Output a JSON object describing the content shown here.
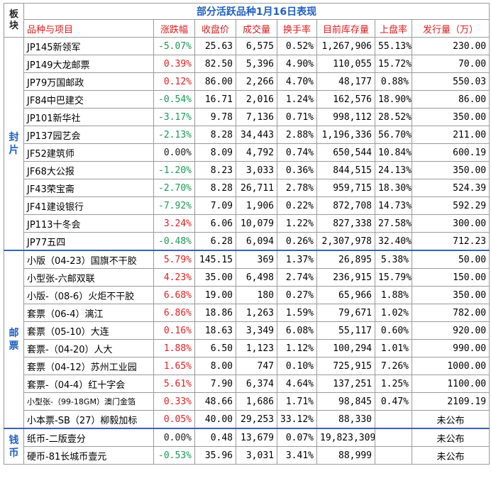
{
  "title": "部分活跃品种1月16日表现",
  "corner_label": "板块",
  "headers": [
    "品种与项目",
    "涨跌幅",
    "收盘价",
    "成交量",
    "换手率",
    "目前库存量",
    "上盘率",
    "发行量（万）"
  ],
  "sections": [
    {
      "label": "封片",
      "rows": [
        {
          "name": "JP145新领军",
          "change": "-5.07%",
          "dir": "neg",
          "close": "25.63",
          "volume": "6,575",
          "turnover": "0.52%",
          "stock": "1,267,906",
          "rate": "55.13%",
          "issue": "230.00"
        },
        {
          "name": "JP149大龙邮票",
          "change": "0.39%",
          "dir": "pos",
          "close": "82.50",
          "volume": "5,396",
          "turnover": "4.90%",
          "stock": "110,055",
          "rate": "15.72%",
          "issue": "70.00"
        },
        {
          "name": "JP79万国邮政",
          "change": "0.12%",
          "dir": "pos",
          "close": "86.00",
          "volume": "2,266",
          "turnover": "4.70%",
          "stock": "48,177",
          "rate": "0.88%",
          "issue": "550.03"
        },
        {
          "name": "JF84中巴建交",
          "change": "-0.54%",
          "dir": "neg",
          "close": "16.71",
          "volume": "2,016",
          "turnover": "1.24%",
          "stock": "162,576",
          "rate": "18.90%",
          "issue": "86.00"
        },
        {
          "name": "JP101新华社",
          "change": "-3.17%",
          "dir": "neg",
          "close": "9.78",
          "volume": "7,136",
          "turnover": "0.71%",
          "stock": "998,112",
          "rate": "28.52%",
          "issue": "350.00"
        },
        {
          "name": "JP137园艺会",
          "change": "-2.13%",
          "dir": "neg",
          "close": "8.28",
          "volume": "34,443",
          "turnover": "2.88%",
          "stock": "1,196,336",
          "rate": "56.70%",
          "issue": "211.00"
        },
        {
          "name": "JF52建筑师",
          "change": "0.00%",
          "dir": "zero",
          "close": "8.09",
          "volume": "4,792",
          "turnover": "0.74%",
          "stock": "650,544",
          "rate": "10.84%",
          "issue": "600.19"
        },
        {
          "name": "JF68大公报",
          "change": "-1.20%",
          "dir": "neg",
          "close": "8.23",
          "volume": "3,033",
          "turnover": "0.36%",
          "stock": "844,515",
          "rate": "24.13%",
          "issue": "350.00"
        },
        {
          "name": "JF43荣宝斋",
          "change": "-2.70%",
          "dir": "neg",
          "close": "8.28",
          "volume": "26,711",
          "turnover": "2.78%",
          "stock": "959,715",
          "rate": "18.30%",
          "issue": "524.39"
        },
        {
          "name": "JF41建设银行",
          "change": "-7.92%",
          "dir": "neg",
          "close": "7.09",
          "volume": "1,906",
          "turnover": "0.22%",
          "stock": "872,708",
          "rate": "14.73%",
          "issue": "592.29"
        },
        {
          "name": "JP113十冬会",
          "change": "3.24%",
          "dir": "pos",
          "close": "6.06",
          "volume": "10,079",
          "turnover": "1.22%",
          "stock": "827,338",
          "rate": "27.58%",
          "issue": "300.00"
        },
        {
          "name": "JP77五四",
          "change": "-0.48%",
          "dir": "neg",
          "close": "6.28",
          "volume": "6,094",
          "turnover": "0.26%",
          "stock": "2,307,978",
          "rate": "32.40%",
          "issue": "712.23"
        }
      ]
    },
    {
      "label": "邮票",
      "rows": [
        {
          "name": "小版（04-23）国旗不干胶",
          "change": "5.79%",
          "dir": "pos",
          "close": "145.15",
          "volume": "369",
          "turnover": "1.37%",
          "stock": "26,895",
          "rate": "5.38%",
          "issue": "50.00"
        },
        {
          "name": "小型张-六邮双联",
          "change": "4.23%",
          "dir": "pos",
          "close": "35.00",
          "volume": "6,498",
          "turnover": "2.74%",
          "stock": "236,915",
          "rate": "15.79%",
          "issue": "150.00"
        },
        {
          "name": "小版-（08-6）火炬不干胶",
          "change": "6.68%",
          "dir": "pos",
          "close": "19.00",
          "volume": "180",
          "turnover": "0.27%",
          "stock": "65,966",
          "rate": "1.88%",
          "issue": "350.00"
        },
        {
          "name": "套票（06-4）漓江",
          "change": "6.86%",
          "dir": "pos",
          "close": "18.86",
          "volume": "1,263",
          "turnover": "1.59%",
          "stock": "79,671",
          "rate": "1.02%",
          "issue": "782.00"
        },
        {
          "name": "套票（05-10）大连",
          "change": "0.16%",
          "dir": "pos",
          "close": "18.63",
          "volume": "3,349",
          "turnover": "6.08%",
          "stock": "55,117",
          "rate": "0.60%",
          "issue": "920.00"
        },
        {
          "name": "套票-（04-20）人大",
          "change": "1.88%",
          "dir": "pos",
          "close": "6.50",
          "volume": "1,123",
          "turnover": "1.12%",
          "stock": "100,294",
          "rate": "1.01%",
          "issue": "990.00"
        },
        {
          "name": "套票（04-12）苏州工业园",
          "change": "1.65%",
          "dir": "pos",
          "close": "8.00",
          "volume": "747",
          "turnover": "0.10%",
          "stock": "725,915",
          "rate": "7.26%",
          "issue": "1000.00"
        },
        {
          "name": "套票-（04-4）红十字会",
          "change": "5.61%",
          "dir": "pos",
          "close": "7.90",
          "volume": "6,374",
          "turnover": "4.64%",
          "stock": "137,251",
          "rate": "1.25%",
          "issue": "1100.00"
        },
        {
          "name": "小型张-（99-18GM）澳门金箔",
          "change": "0.33%",
          "dir": "pos",
          "close": "48.66",
          "volume": "1,686",
          "turnover": "1.71%",
          "stock": "98,845",
          "rate": "0.47%",
          "issue": "2109.19",
          "small": true
        },
        {
          "name": "小本票-SB（27）柳毅加标",
          "change": "0.05%",
          "dir": "pos",
          "close": "40.00",
          "volume": "29,253",
          "turnover": "33.12%",
          "stock": "88,330",
          "rate": "",
          "issue": "未公布"
        }
      ]
    },
    {
      "label": "钱币",
      "rows": [
        {
          "name": "纸币-二版壹分",
          "change": "0.00%",
          "dir": "zero",
          "close": "0.48",
          "volume": "13,679",
          "turnover": "0.07%",
          "stock": "19,823,309",
          "rate": "",
          "issue": "未公布"
        },
        {
          "name": "硬币-81长城币壹元",
          "change": "-0.53%",
          "dir": "neg",
          "close": "35.96",
          "volume": "3,031",
          "turnover": "3.41%",
          "stock": "88,999",
          "rate": "",
          "issue": "未公布"
        }
      ]
    }
  ]
}
